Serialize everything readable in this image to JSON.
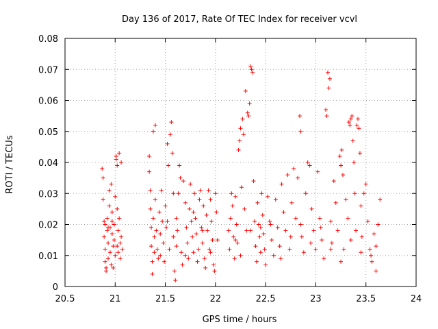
{
  "chart_data": {
    "type": "scatter",
    "title": "Day 136 of 2017, Rate Of TEC Index for receiver vcvl",
    "xlabel": "GPS time / hours",
    "ylabel": "ROTI / TECUs",
    "xlim": [
      20.5,
      24
    ],
    "ylim": [
      0,
      0.08
    ],
    "xticks": [
      20.5,
      21,
      21.5,
      22,
      22.5,
      23,
      23.5,
      24
    ],
    "xtick_labels": [
      "20.5",
      "21",
      "21.5",
      "22",
      "22.5",
      "23",
      "23.5",
      "24"
    ],
    "yticks": [
      0,
      0.01,
      0.02,
      0.03,
      0.04,
      0.05,
      0.06,
      0.07,
      0.08
    ],
    "ytick_labels": [
      "0",
      "0.01",
      "0.02",
      "0.03",
      "0.04",
      "0.05",
      "0.06",
      "0.07",
      "0.08"
    ],
    "grid": true,
    "marker": "plus",
    "color": "#ff0000",
    "series": [
      {
        "name": "ROTI",
        "points": [
          [
            20.87,
            0.038
          ],
          [
            20.88,
            0.035
          ],
          [
            20.88,
            0.028
          ],
          [
            20.89,
            0.021
          ],
          [
            20.89,
            0.016
          ],
          [
            20.9,
            0.012
          ],
          [
            20.9,
            0.008
          ],
          [
            20.91,
            0.006
          ],
          [
            20.91,
            0.005
          ],
          [
            20.92,
            0.022
          ],
          [
            20.92,
            0.018
          ],
          [
            20.93,
            0.014
          ],
          [
            20.93,
            0.009
          ],
          [
            20.94,
            0.031
          ],
          [
            20.94,
            0.026
          ],
          [
            20.95,
            0.019
          ],
          [
            20.95,
            0.011
          ],
          [
            20.96,
            0.007
          ],
          [
            20.96,
            0.033
          ],
          [
            20.97,
            0.024
          ],
          [
            20.97,
            0.017
          ],
          [
            20.98,
            0.013
          ],
          [
            20.98,
            0.006
          ],
          [
            20.99,
            0.02
          ],
          [
            20.99,
            0.015
          ],
          [
            21.0,
            0.01
          ],
          [
            21.0,
            0.029
          ],
          [
            21.01,
            0.041
          ],
          [
            21.01,
            0.042
          ],
          [
            21.02,
            0.039
          ],
          [
            21.02,
            0.025
          ],
          [
            21.03,
            0.018
          ],
          [
            21.03,
            0.011
          ],
          [
            21.04,
            0.043
          ],
          [
            21.04,
            0.022
          ],
          [
            21.05,
            0.014
          ],
          [
            21.05,
            0.009
          ],
          [
            21.06,
            0.04
          ],
          [
            21.06,
            0.016
          ],
          [
            21.07,
            0.012
          ],
          [
            20.9,
            0.02
          ],
          [
            20.93,
            0.019
          ],
          [
            20.97,
            0.021
          ],
          [
            21.02,
            0.013
          ],
          [
            21.34,
            0.042
          ],
          [
            21.34,
            0.037
          ],
          [
            21.35,
            0.031
          ],
          [
            21.35,
            0.025
          ],
          [
            21.36,
            0.019
          ],
          [
            21.36,
            0.013
          ],
          [
            21.37,
            0.008
          ],
          [
            21.37,
            0.004
          ],
          [
            21.38,
            0.05
          ],
          [
            21.38,
            0.022
          ],
          [
            21.39,
            0.016
          ],
          [
            21.39,
            0.011
          ],
          [
            21.4,
            0.052
          ],
          [
            21.4,
            0.028
          ],
          [
            21.41,
            0.018
          ],
          [
            21.42,
            0.012
          ],
          [
            21.43,
            0.009
          ],
          [
            21.44,
            0.024
          ],
          [
            21.45,
            0.017
          ],
          [
            21.46,
            0.031
          ],
          [
            21.47,
            0.021
          ],
          [
            21.48,
            0.014
          ],
          [
            21.49,
            0.008
          ],
          [
            21.5,
            0.026
          ],
          [
            21.51,
            0.019
          ],
          [
            21.52,
            0.046
          ],
          [
            21.53,
            0.039
          ],
          [
            21.54,
            0.012
          ],
          [
            21.55,
            0.049
          ],
          [
            21.56,
            0.053
          ],
          [
            21.57,
            0.043
          ],
          [
            21.58,
            0.03
          ],
          [
            21.58,
            0.016
          ],
          [
            21.59,
            0.005
          ],
          [
            21.6,
            0.002
          ],
          [
            21.61,
            0.022
          ],
          [
            21.62,
            0.018
          ],
          [
            21.63,
            0.03
          ],
          [
            21.64,
            0.039
          ],
          [
            21.65,
            0.035
          ],
          [
            21.66,
            0.011
          ],
          [
            21.67,
            0.007
          ],
          [
            21.68,
            0.034
          ],
          [
            21.7,
            0.027
          ],
          [
            21.71,
            0.019
          ],
          [
            21.72,
            0.014
          ],
          [
            21.73,
            0.009
          ],
          [
            21.74,
            0.025
          ],
          [
            21.75,
            0.033
          ],
          [
            21.76,
            0.021
          ],
          [
            21.77,
            0.016
          ],
          [
            21.78,
            0.011
          ],
          [
            21.79,
            0.03
          ],
          [
            21.8,
            0.022
          ],
          [
            21.81,
            0.017
          ],
          [
            21.82,
            0.008
          ],
          [
            21.83,
            0.012
          ],
          [
            21.84,
            0.028
          ],
          [
            21.85,
            0.031
          ],
          [
            21.86,
            0.019
          ],
          [
            21.87,
            0.014
          ],
          [
            21.88,
            0.026
          ],
          [
            21.89,
            0.009
          ],
          [
            21.9,
            0.006
          ],
          [
            21.91,
            0.023
          ],
          [
            21.92,
            0.018
          ],
          [
            21.93,
            0.031
          ],
          [
            21.94,
            0.012
          ],
          [
            21.95,
            0.028
          ],
          [
            21.96,
            0.021
          ],
          [
            21.97,
            0.015
          ],
          [
            21.98,
            0.007
          ],
          [
            21.99,
            0.005
          ],
          [
            22.0,
            0.03
          ],
          [
            22.01,
            0.024
          ],
          [
            22.02,
            0.015
          ],
          [
            21.45,
            0.01
          ],
          [
            21.52,
            0.021
          ],
          [
            21.61,
            0.013
          ],
          [
            21.7,
            0.01
          ],
          [
            21.78,
            0.024
          ],
          [
            21.87,
            0.018
          ],
          [
            21.95,
            0.011
          ],
          [
            22.13,
            0.018
          ],
          [
            22.14,
            0.012
          ],
          [
            22.15,
            0.022
          ],
          [
            22.16,
            0.03
          ],
          [
            22.17,
            0.026
          ],
          [
            22.18,
            0.016
          ],
          [
            22.19,
            0.009
          ],
          [
            22.2,
            0.029
          ],
          [
            22.21,
            0.02
          ],
          [
            22.22,
            0.014
          ],
          [
            22.23,
            0.044
          ],
          [
            22.24,
            0.047
          ],
          [
            22.25,
            0.051
          ],
          [
            22.26,
            0.032
          ],
          [
            22.27,
            0.054
          ],
          [
            22.28,
            0.049
          ],
          [
            22.29,
            0.025
          ],
          [
            22.3,
            0.063
          ],
          [
            22.31,
            0.018
          ],
          [
            22.32,
            0.056
          ],
          [
            22.33,
            0.055
          ],
          [
            22.34,
            0.059
          ],
          [
            22.35,
            0.071
          ],
          [
            22.36,
            0.07
          ],
          [
            22.37,
            0.069
          ],
          [
            22.38,
            0.034
          ],
          [
            22.39,
            0.021
          ],
          [
            22.4,
            0.013
          ],
          [
            22.41,
            0.008
          ],
          [
            22.42,
            0.027
          ],
          [
            22.43,
            0.02
          ],
          [
            22.44,
            0.016
          ],
          [
            22.45,
            0.011
          ],
          [
            22.46,
            0.03
          ],
          [
            22.47,
            0.023
          ],
          [
            22.48,
            0.017
          ],
          [
            22.49,
            0.012
          ],
          [
            22.5,
            0.007
          ],
          [
            22.52,
            0.029
          ],
          [
            22.54,
            0.021
          ],
          [
            22.56,
            0.015
          ],
          [
            22.58,
            0.01
          ],
          [
            22.6,
            0.028
          ],
          [
            22.62,
            0.019
          ],
          [
            22.64,
            0.013
          ],
          [
            22.66,
            0.033
          ],
          [
            22.68,
            0.024
          ],
          [
            22.7,
            0.018
          ],
          [
            22.72,
            0.036
          ],
          [
            22.74,
            0.012
          ],
          [
            22.76,
            0.027
          ],
          [
            22.78,
            0.038
          ],
          [
            22.8,
            0.022
          ],
          [
            22.82,
            0.035
          ],
          [
            22.84,
            0.055
          ],
          [
            22.85,
            0.05
          ],
          [
            22.86,
            0.016
          ],
          [
            22.88,
            0.011
          ],
          [
            22.9,
            0.03
          ],
          [
            22.92,
            0.04
          ],
          [
            22.94,
            0.039
          ],
          [
            22.96,
            0.025
          ],
          [
            22.98,
            0.018
          ],
          [
            23.0,
            0.012
          ],
          [
            23.02,
            0.037
          ],
          [
            23.04,
            0.022
          ],
          [
            23.06,
            0.015
          ],
          [
            23.08,
            0.009
          ],
          [
            23.1,
            0.057
          ],
          [
            23.11,
            0.055
          ],
          [
            23.12,
            0.069
          ],
          [
            23.13,
            0.064
          ],
          [
            23.14,
            0.067
          ],
          [
            23.15,
            0.021
          ],
          [
            23.16,
            0.014
          ],
          [
            23.18,
            0.034
          ],
          [
            23.2,
            0.027
          ],
          [
            23.22,
            0.018
          ],
          [
            23.24,
            0.042
          ],
          [
            23.25,
            0.039
          ],
          [
            23.26,
            0.044
          ],
          [
            23.27,
            0.036
          ],
          [
            23.28,
            0.012
          ],
          [
            23.3,
            0.028
          ],
          [
            23.32,
            0.022
          ],
          [
            23.33,
            0.053
          ],
          [
            23.34,
            0.052
          ],
          [
            23.35,
            0.054
          ],
          [
            23.36,
            0.055
          ],
          [
            23.37,
            0.047
          ],
          [
            23.38,
            0.04
          ],
          [
            23.39,
            0.03
          ],
          [
            23.4,
            0.018
          ],
          [
            23.41,
            0.052
          ],
          [
            23.42,
            0.054
          ],
          [
            23.43,
            0.051
          ],
          [
            23.44,
            0.043
          ],
          [
            23.45,
            0.026
          ],
          [
            23.46,
            0.016
          ],
          [
            23.48,
            0.03
          ],
          [
            23.5,
            0.033
          ],
          [
            23.52,
            0.021
          ],
          [
            23.54,
            0.012
          ],
          [
            23.56,
            0.008
          ],
          [
            23.58,
            0.017
          ],
          [
            23.6,
            0.013
          ],
          [
            23.62,
            0.02
          ],
          [
            23.64,
            0.028
          ],
          [
            22.2,
            0.015
          ],
          [
            22.35,
            0.018
          ],
          [
            22.55,
            0.02
          ],
          [
            22.75,
            0.016
          ],
          [
            22.95,
            0.014
          ],
          [
            23.15,
            0.012
          ],
          [
            23.35,
            0.015
          ],
          [
            23.55,
            0.01
          ],
          [
            22.25,
            0.01
          ],
          [
            22.45,
            0.019
          ],
          [
            22.65,
            0.009
          ],
          [
            22.85,
            0.02
          ],
          [
            23.05,
            0.019
          ],
          [
            23.25,
            0.008
          ],
          [
            23.45,
            0.011
          ],
          [
            23.6,
            0.005
          ]
        ]
      }
    ]
  }
}
